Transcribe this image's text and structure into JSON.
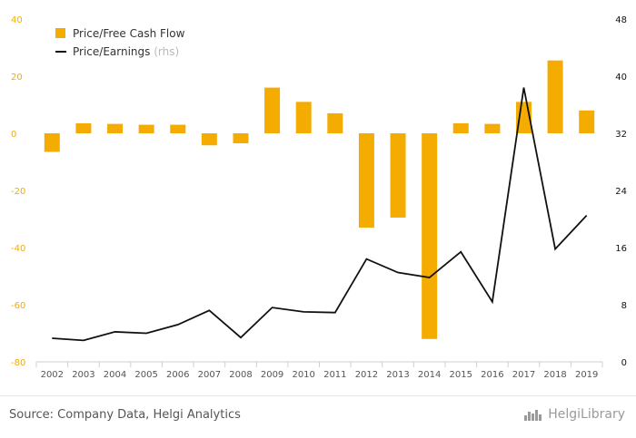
{
  "chart_data": {
    "type": "bar",
    "categories": [
      "2002",
      "2003",
      "2004",
      "2005",
      "2006",
      "2007",
      "2008",
      "2009",
      "2010",
      "2011",
      "2012",
      "2013",
      "2014",
      "2015",
      "2016",
      "2017",
      "2018",
      "2019"
    ],
    "series": [
      {
        "name": "Price/Free Cash Flow",
        "type": "bar",
        "axis": "left",
        "color": "#f5ac00",
        "values": [
          -6.5,
          3.5,
          3.3,
          3.0,
          3.0,
          -4.2,
          -3.5,
          16.0,
          11.0,
          7.0,
          -33.0,
          -29.5,
          -72.0,
          3.5,
          3.3,
          11.0,
          25.5,
          8.0
        ]
      },
      {
        "name": "Price/Earnings",
        "name_suffix": "(rhs)",
        "type": "line",
        "axis": "right",
        "color": "#111111",
        "values": [
          3.3,
          3.0,
          4.2,
          4.0,
          5.2,
          7.2,
          3.4,
          7.6,
          7.0,
          6.9,
          14.4,
          12.5,
          11.8,
          15.4,
          8.4,
          38.4,
          15.8,
          20.5
        ]
      }
    ],
    "y_left": {
      "ylim": [
        -80,
        40
      ],
      "ticks": [
        "-80",
        "-60",
        "-40",
        "-20",
        "0",
        "20",
        "40"
      ],
      "tick_color": "#f5ac00"
    },
    "y_right": {
      "ylim": [
        0,
        48
      ],
      "ticks": [
        "0",
        "8",
        "16",
        "24",
        "32",
        "40",
        "48"
      ],
      "tick_color": "#111111"
    },
    "grid": false,
    "legend_position": "top-left"
  },
  "footer": {
    "source": "Source: Company Data, Helgi Analytics",
    "logo_text": "HelgiLibrary",
    "logo_icon": "city-skyline-icon"
  }
}
